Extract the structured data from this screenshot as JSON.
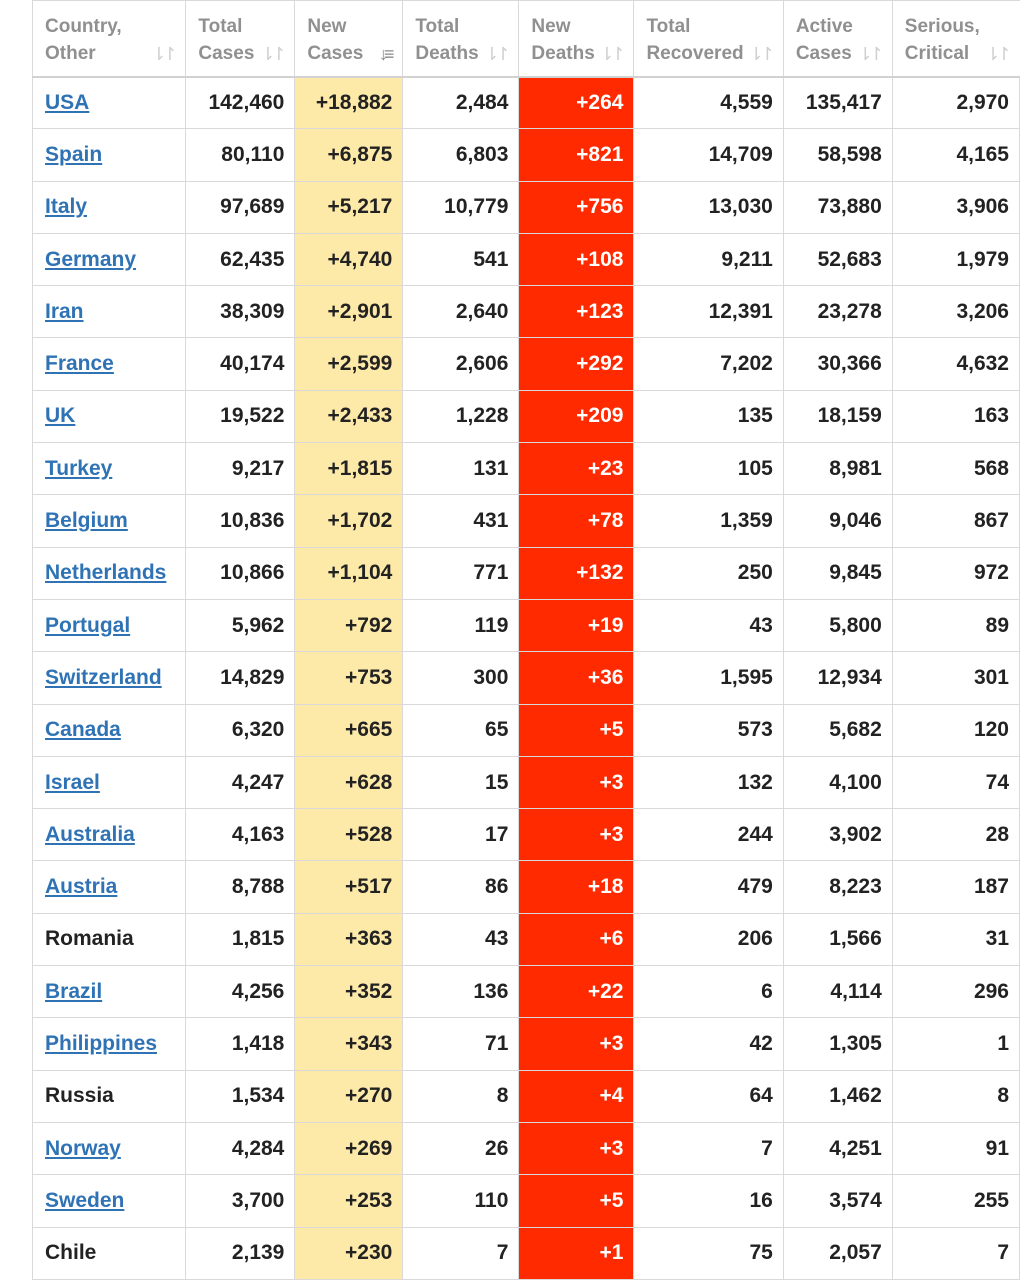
{
  "table": {
    "columns": [
      {
        "line1": "Country,",
        "line2": "Other",
        "sort": "⇂↾"
      },
      {
        "line1": "Total",
        "line2": "Cases",
        "sort": "⇂↾"
      },
      {
        "line1": "New",
        "line2": "Cases",
        "sort": "↓≡"
      },
      {
        "line1": "Total",
        "line2": "Deaths",
        "sort": "⇂↾"
      },
      {
        "line1": "New",
        "line2": "Deaths",
        "sort": "⇂↾"
      },
      {
        "line1": "Total",
        "line2": "Recovered",
        "sort": "⇂↾"
      },
      {
        "line1": "Active",
        "line2": "Cases",
        "sort": "⇂↾"
      },
      {
        "line1": "Serious,",
        "line2": "Critical",
        "sort": "⇂↾"
      }
    ],
    "colors": {
      "new_cases_bg": "#feeaa8",
      "new_deaths_bg": "#ff2a00",
      "link": "#2f73b5"
    },
    "rows": [
      {
        "country": "USA",
        "link": true,
        "total_cases": "142,460",
        "new_cases": "+18,882",
        "total_deaths": "2,484",
        "new_deaths": "+264",
        "total_recovered": "4,559",
        "active_cases": "135,417",
        "serious_critical": "2,970"
      },
      {
        "country": "Spain",
        "link": true,
        "total_cases": "80,110",
        "new_cases": "+6,875",
        "total_deaths": "6,803",
        "new_deaths": "+821",
        "total_recovered": "14,709",
        "active_cases": "58,598",
        "serious_critical": "4,165"
      },
      {
        "country": "Italy",
        "link": true,
        "total_cases": "97,689",
        "new_cases": "+5,217",
        "total_deaths": "10,779",
        "new_deaths": "+756",
        "total_recovered": "13,030",
        "active_cases": "73,880",
        "serious_critical": "3,906"
      },
      {
        "country": "Germany",
        "link": true,
        "total_cases": "62,435",
        "new_cases": "+4,740",
        "total_deaths": "541",
        "new_deaths": "+108",
        "total_recovered": "9,211",
        "active_cases": "52,683",
        "serious_critical": "1,979"
      },
      {
        "country": "Iran",
        "link": true,
        "total_cases": "38,309",
        "new_cases": "+2,901",
        "total_deaths": "2,640",
        "new_deaths": "+123",
        "total_recovered": "12,391",
        "active_cases": "23,278",
        "serious_critical": "3,206"
      },
      {
        "country": "France",
        "link": true,
        "total_cases": "40,174",
        "new_cases": "+2,599",
        "total_deaths": "2,606",
        "new_deaths": "+292",
        "total_recovered": "7,202",
        "active_cases": "30,366",
        "serious_critical": "4,632"
      },
      {
        "country": "UK",
        "link": true,
        "total_cases": "19,522",
        "new_cases": "+2,433",
        "total_deaths": "1,228",
        "new_deaths": "+209",
        "total_recovered": "135",
        "active_cases": "18,159",
        "serious_critical": "163"
      },
      {
        "country": "Turkey",
        "link": true,
        "total_cases": "9,217",
        "new_cases": "+1,815",
        "total_deaths": "131",
        "new_deaths": "+23",
        "total_recovered": "105",
        "active_cases": "8,981",
        "serious_critical": "568"
      },
      {
        "country": "Belgium",
        "link": true,
        "total_cases": "10,836",
        "new_cases": "+1,702",
        "total_deaths": "431",
        "new_deaths": "+78",
        "total_recovered": "1,359",
        "active_cases": "9,046",
        "serious_critical": "867"
      },
      {
        "country": "Netherlands",
        "link": true,
        "total_cases": "10,866",
        "new_cases": "+1,104",
        "total_deaths": "771",
        "new_deaths": "+132",
        "total_recovered": "250",
        "active_cases": "9,845",
        "serious_critical": "972"
      },
      {
        "country": "Portugal",
        "link": true,
        "total_cases": "5,962",
        "new_cases": "+792",
        "total_deaths": "119",
        "new_deaths": "+19",
        "total_recovered": "43",
        "active_cases": "5,800",
        "serious_critical": "89"
      },
      {
        "country": "Switzerland",
        "link": true,
        "total_cases": "14,829",
        "new_cases": "+753",
        "total_deaths": "300",
        "new_deaths": "+36",
        "total_recovered": "1,595",
        "active_cases": "12,934",
        "serious_critical": "301"
      },
      {
        "country": "Canada",
        "link": true,
        "total_cases": "6,320",
        "new_cases": "+665",
        "total_deaths": "65",
        "new_deaths": "+5",
        "total_recovered": "573",
        "active_cases": "5,682",
        "serious_critical": "120"
      },
      {
        "country": "Israel",
        "link": true,
        "total_cases": "4,247",
        "new_cases": "+628",
        "total_deaths": "15",
        "new_deaths": "+3",
        "total_recovered": "132",
        "active_cases": "4,100",
        "serious_critical": "74"
      },
      {
        "country": "Australia",
        "link": true,
        "total_cases": "4,163",
        "new_cases": "+528",
        "total_deaths": "17",
        "new_deaths": "+3",
        "total_recovered": "244",
        "active_cases": "3,902",
        "serious_critical": "28"
      },
      {
        "country": "Austria",
        "link": true,
        "total_cases": "8,788",
        "new_cases": "+517",
        "total_deaths": "86",
        "new_deaths": "+18",
        "total_recovered": "479",
        "active_cases": "8,223",
        "serious_critical": "187"
      },
      {
        "country": "Romania",
        "link": false,
        "total_cases": "1,815",
        "new_cases": "+363",
        "total_deaths": "43",
        "new_deaths": "+6",
        "total_recovered": "206",
        "active_cases": "1,566",
        "serious_critical": "31"
      },
      {
        "country": "Brazil",
        "link": true,
        "total_cases": "4,256",
        "new_cases": "+352",
        "total_deaths": "136",
        "new_deaths": "+22",
        "total_recovered": "6",
        "active_cases": "4,114",
        "serious_critical": "296"
      },
      {
        "country": "Philippines",
        "link": true,
        "total_cases": "1,418",
        "new_cases": "+343",
        "total_deaths": "71",
        "new_deaths": "+3",
        "total_recovered": "42",
        "active_cases": "1,305",
        "serious_critical": "1"
      },
      {
        "country": "Russia",
        "link": false,
        "total_cases": "1,534",
        "new_cases": "+270",
        "total_deaths": "8",
        "new_deaths": "+4",
        "total_recovered": "64",
        "active_cases": "1,462",
        "serious_critical": "8"
      },
      {
        "country": "Norway",
        "link": true,
        "total_cases": "4,284",
        "new_cases": "+269",
        "total_deaths": "26",
        "new_deaths": "+3",
        "total_recovered": "7",
        "active_cases": "4,251",
        "serious_critical": "91"
      },
      {
        "country": "Sweden",
        "link": true,
        "total_cases": "3,700",
        "new_cases": "+253",
        "total_deaths": "110",
        "new_deaths": "+5",
        "total_recovered": "16",
        "active_cases": "3,574",
        "serious_critical": "255"
      },
      {
        "country": "Chile",
        "link": false,
        "total_cases": "2,139",
        "new_cases": "+230",
        "total_deaths": "7",
        "new_deaths": "+1",
        "total_recovered": "75",
        "active_cases": "2,057",
        "serious_critical": "7"
      }
    ]
  }
}
